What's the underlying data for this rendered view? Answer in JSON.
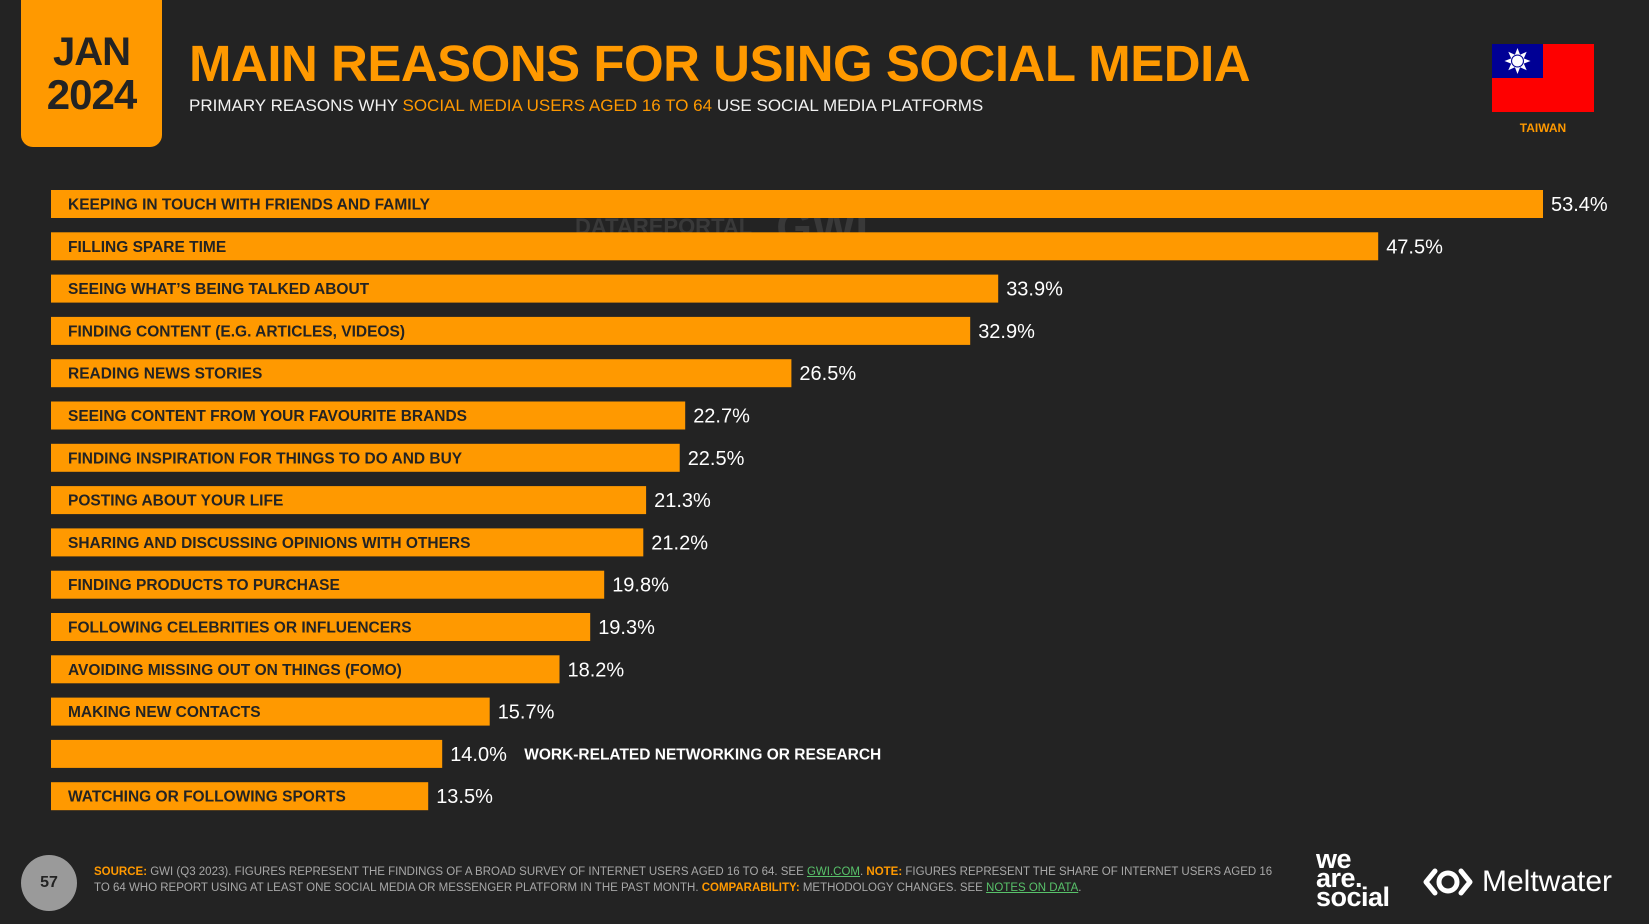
{
  "header": {
    "month": "JAN",
    "year": "2024",
    "title": "MAIN REASONS FOR USING SOCIAL MEDIA",
    "subtitle_pre": "PRIMARY REASONS WHY ",
    "subtitle_highlight": "SOCIAL MEDIA USERS AGED 16 TO 64",
    "subtitle_post": " USE SOCIAL MEDIA PLATFORMS",
    "country": "TAIWAN"
  },
  "watermark": {
    "datareportal": "DATAREPORTAL",
    "gwi": "GWI."
  },
  "chart_data": {
    "type": "bar",
    "orientation": "horizontal",
    "categories": [
      "KEEPING IN TOUCH WITH FRIENDS AND FAMILY",
      "FILLING SPARE TIME",
      "SEEING WHAT’S BEING TALKED ABOUT",
      "FINDING CONTENT (E.G. ARTICLES, VIDEOS)",
      "READING NEWS STORIES",
      "SEEING CONTENT FROM YOUR FAVOURITE BRANDS",
      "FINDING INSPIRATION FOR THINGS TO DO AND BUY",
      "POSTING ABOUT YOUR LIFE",
      "SHARING AND DISCUSSING OPINIONS WITH OTHERS",
      "FINDING PRODUCTS TO PURCHASE",
      "FOLLOWING CELEBRITIES OR INFLUENCERS",
      "AVOIDING MISSING OUT ON THINGS (FOMO)",
      "MAKING NEW CONTACTS",
      "WORK-RELATED NETWORKING OR RESEARCH",
      "WATCHING OR FOLLOWING SPORTS"
    ],
    "values": [
      53.4,
      47.5,
      33.9,
      32.9,
      26.5,
      22.7,
      22.5,
      21.3,
      21.2,
      19.8,
      19.3,
      18.2,
      15.7,
      14.0,
      13.5
    ],
    "value_labels": [
      "53.4%",
      "47.5%",
      "33.9%",
      "32.9%",
      "26.5%",
      "22.7%",
      "22.5%",
      "21.3%",
      "21.2%",
      "19.8%",
      "19.3%",
      "18.2%",
      "15.7%",
      "14.0%",
      "13.5%"
    ],
    "label_outside": [
      false,
      false,
      false,
      false,
      false,
      false,
      false,
      false,
      false,
      false,
      false,
      false,
      false,
      true,
      false
    ],
    "unit": "%",
    "xlim": [
      0,
      53.4
    ],
    "bar_color": "#FF9900",
    "grid": false,
    "legend": "none"
  },
  "footer": {
    "page_number": "57",
    "source_label": "SOURCE:",
    "source_text": " GWI (Q3 2023). FIGURES REPRESENT THE FINDINGS OF A BROAD SURVEY OF INTERNET USERS AGED 16 TO 64. SEE ",
    "source_link": "GWI.COM",
    "note_label": "NOTE:",
    "note_text": " FIGURES REPRESENT THE SHARE OF INTERNET USERS AGED 16 TO 64 WHO REPORT USING AT LEAST ONE SOCIAL MEDIA OR MESSENGER PLATFORM IN THE PAST MONTH. ",
    "comparability_label": "COMPARABILITY:",
    "comparability_text": " METHODOLOGY CHANGES. SEE ",
    "notes_link": "NOTES ON DATA",
    "brand_line1": "we",
    "brand_line2": "are.",
    "brand_line3": "social",
    "meltwater": "Meltwater"
  },
  "colors": {
    "background": "#232323",
    "accent": "#FF9900",
    "link": "#58C26A"
  }
}
